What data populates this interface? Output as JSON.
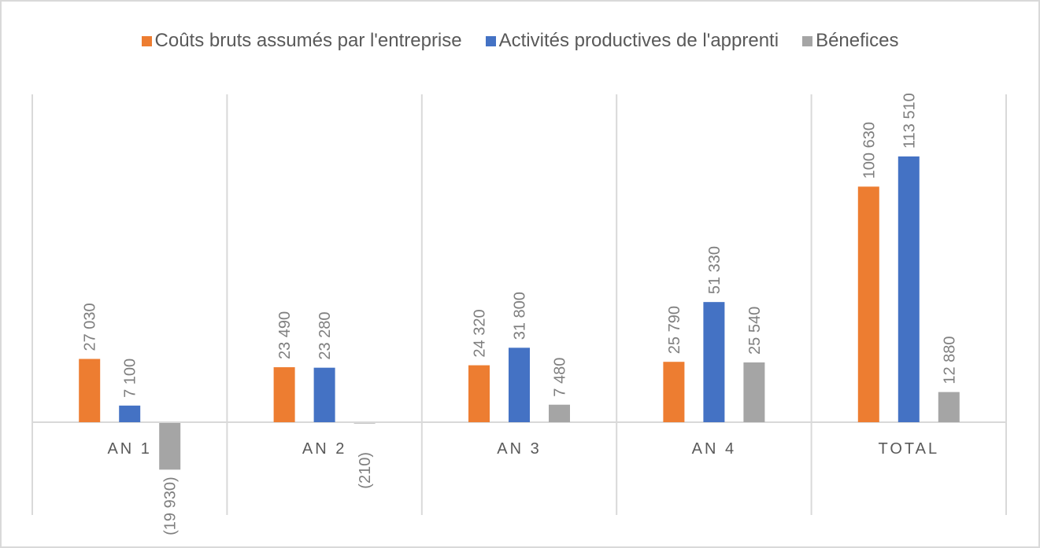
{
  "chart_data": {
    "type": "bar",
    "title": "",
    "xlabel": "",
    "ylabel": "",
    "categories": [
      "AN 1",
      "AN 2",
      "AN 3",
      "AN 4",
      "TOTAL"
    ],
    "series": [
      {
        "name": "Coûts bruts assumés par l'entreprise",
        "color": "#ed7d31",
        "values": [
          27030,
          23490,
          24320,
          25790,
          100630
        ],
        "labels": [
          "27 030",
          "23 490",
          "24 320",
          "25 790",
          "100 630"
        ]
      },
      {
        "name": "Activités productives de l'apprenti",
        "color": "#4472c4",
        "values": [
          7100,
          23280,
          31800,
          51330,
          113510
        ],
        "labels": [
          "7 100",
          "23 280",
          "31 800",
          "51 330",
          "113 510"
        ]
      },
      {
        "name": "Bénefices",
        "color": "#a5a5a5",
        "values": [
          -19930,
          -210,
          7480,
          25540,
          12880
        ],
        "labels": [
          "(19 930)",
          "(210)",
          "7 480",
          "25 540",
          "12 880"
        ]
      }
    ],
    "ylim": [
      -30000,
      115000
    ],
    "legend_position": "top",
    "grid": "vertical category separators"
  }
}
